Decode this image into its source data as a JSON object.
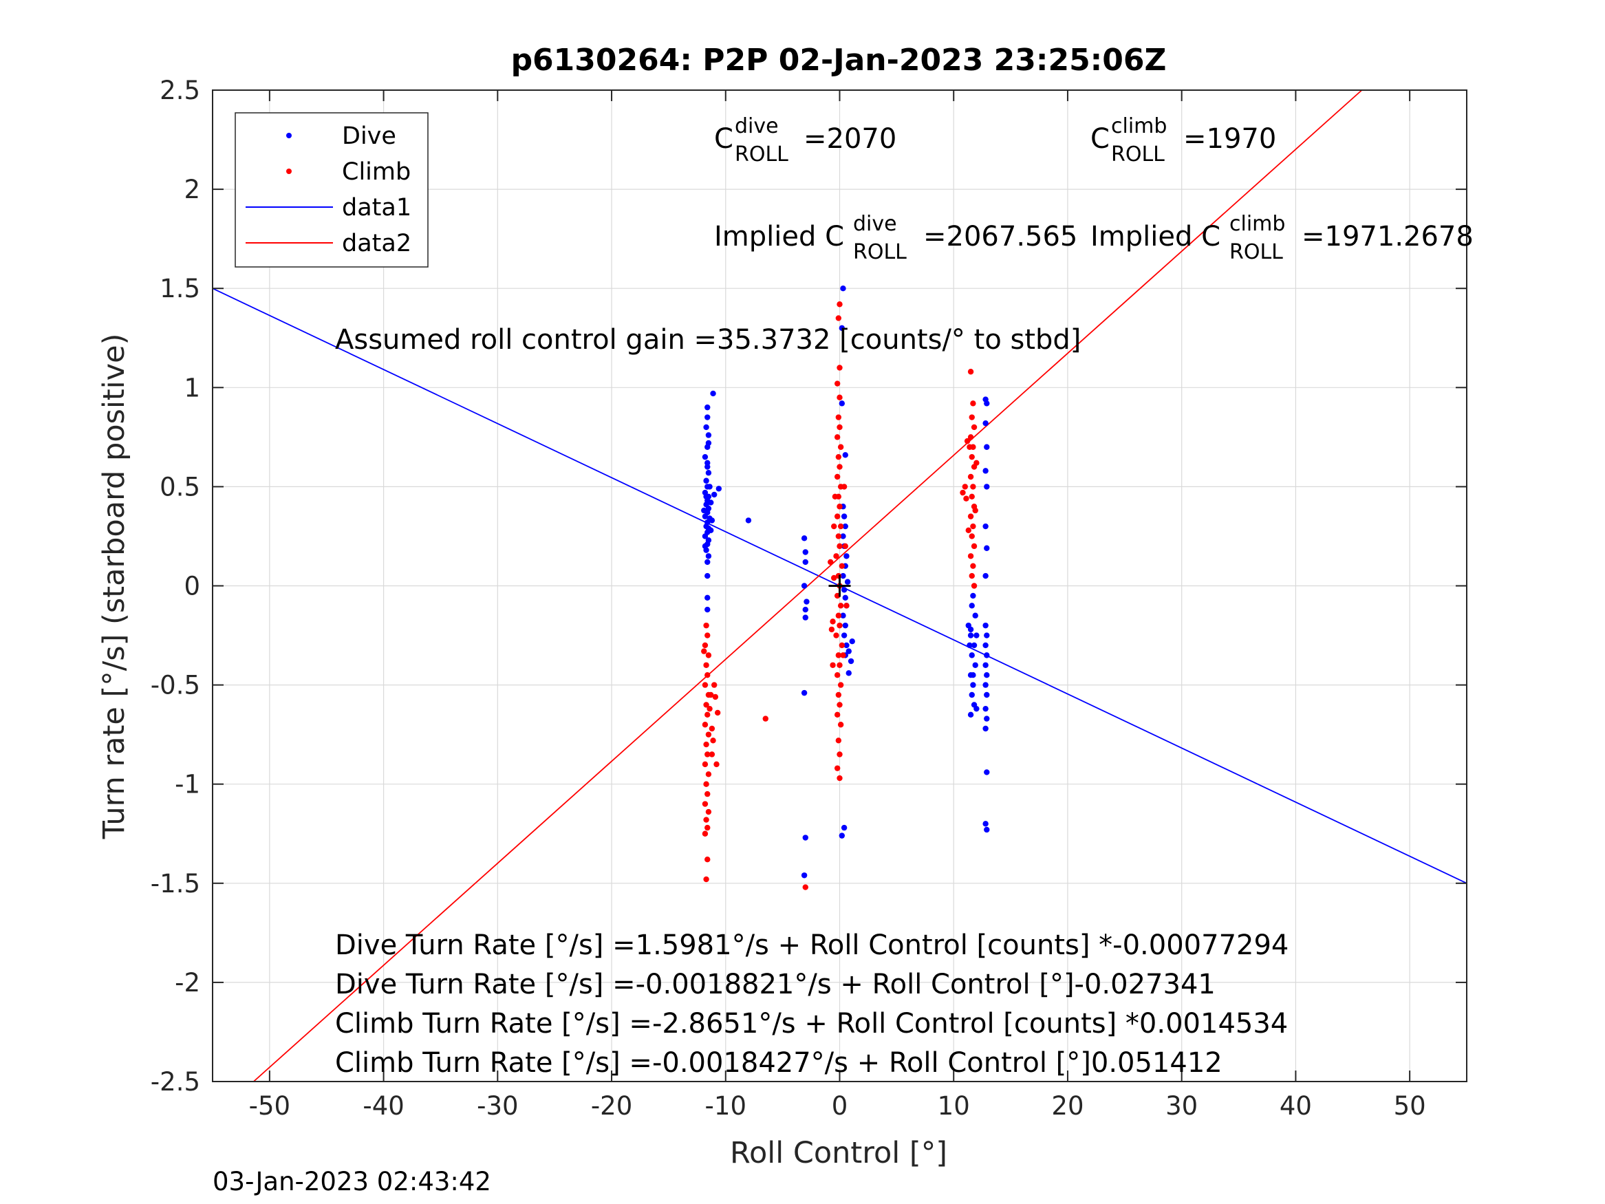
{
  "chart_data": {
    "type": "scatter",
    "title": "p6130264: P2P 02-Jan-2023 23:25:06Z",
    "xlabel": "Roll Control [°]",
    "ylabel": "Turn rate [°/s] (starboard positive)",
    "xlim": [
      -55,
      55
    ],
    "ylim": [
      -2.5,
      2.5
    ],
    "xticks": [
      -50,
      -40,
      -30,
      -20,
      -10,
      0,
      10,
      20,
      30,
      40,
      50
    ],
    "yticks": [
      -2.5,
      -2,
      -1.5,
      -1,
      -0.5,
      0,
      0.5,
      1,
      1.5,
      2,
      2.5
    ],
    "grid": true,
    "legend_position": "top-left",
    "legend": [
      "Dive",
      "Climb",
      "data1",
      "data2"
    ],
    "colors": {
      "dive": "#0000ff",
      "climb": "#ff0000",
      "axes": "#262626",
      "grid": "#d9d9d9"
    },
    "footer_timestamp": "03-Jan-2023 02:43:42",
    "annotations": {
      "c_dive": {
        "base": "C",
        "sup": "dive",
        "sub": "ROLL",
        "value": "=2070"
      },
      "c_climb": {
        "base": "C",
        "sup": "climb",
        "sub": "ROLL",
        "value": "=1970"
      },
      "implied_dive": {
        "prefix": "Implied C",
        "sup": "dive",
        "sub": "ROLL",
        "value": "=2067.565"
      },
      "implied_climb": {
        "prefix": "Implied C",
        "sup": "climb",
        "sub": "ROLL",
        "value": "=1971.2678"
      },
      "gain": "Assumed roll control gain =35.3732 [counts/° to stbd]",
      "fit_lines": [
        "Dive Turn Rate [°/s] =1.5981°/s + Roll Control [counts] *-0.00077294",
        "Dive Turn Rate [°/s] =-0.0018821°/s + Roll Control [°]-0.027341",
        "Climb Turn Rate [°/s] =-2.8651°/s + Roll Control [counts] *0.0014534",
        "Climb Turn Rate [°/s] =-0.0018427°/s + Roll Control [°]0.051412"
      ]
    },
    "series": [
      {
        "name": "Dive",
        "kind": "points",
        "color": "#0000ff",
        "points": [
          [
            -11.6,
            0.9
          ],
          [
            -11.6,
            0.85
          ],
          [
            -11.7,
            0.8
          ],
          [
            -11.5,
            0.76
          ],
          [
            -11.6,
            0.7
          ],
          [
            -11.8,
            0.65
          ],
          [
            -11.6,
            0.62
          ],
          [
            -11.5,
            0.57
          ],
          [
            -11.7,
            0.53
          ],
          [
            -11.6,
            0.5
          ],
          [
            -11.8,
            0.47
          ],
          [
            -11.5,
            0.45
          ],
          [
            -11.6,
            0.43
          ],
          [
            -11.7,
            0.41
          ],
          [
            -11.5,
            0.39
          ],
          [
            -11.6,
            0.37
          ],
          [
            -11.8,
            0.35
          ],
          [
            -11.4,
            0.34
          ],
          [
            -11.6,
            0.32
          ],
          [
            -11.7,
            0.3
          ],
          [
            -11.5,
            0.29
          ],
          [
            -11.6,
            0.27
          ],
          [
            -11.8,
            0.25
          ],
          [
            -11.5,
            0.23
          ],
          [
            -11.6,
            0.21
          ],
          [
            -11.7,
            0.18
          ],
          [
            -11.5,
            0.15
          ],
          [
            -11.6,
            0.12
          ],
          [
            -11.6,
            0.05
          ],
          [
            -11.6,
            -0.06
          ],
          [
            -11.6,
            -0.12
          ],
          [
            -11.7,
            0.45
          ],
          [
            -11.4,
            0.5
          ],
          [
            -11.9,
            0.38
          ],
          [
            -11.3,
            0.28
          ],
          [
            -11.6,
            0.6
          ],
          [
            -11.5,
            0.72
          ],
          [
            -11.3,
            0.42
          ],
          [
            -11.8,
            0.2
          ],
          [
            -11.1,
            0.97
          ],
          [
            -10.6,
            0.49
          ],
          [
            -11.2,
            0.33
          ],
          [
            -11.0,
            0.46
          ],
          [
            -8.0,
            0.33
          ],
          [
            -3.1,
            0.24
          ],
          [
            -3.0,
            0.17
          ],
          [
            -3.0,
            0.12
          ],
          [
            -3.1,
            0.0
          ],
          [
            -2.9,
            -0.08
          ],
          [
            -3.0,
            -0.12
          ],
          [
            -3.0,
            -0.16
          ],
          [
            -3.1,
            -0.54
          ],
          [
            -3.0,
            -1.27
          ],
          [
            -3.1,
            -1.46
          ],
          [
            0.3,
            1.5
          ],
          [
            0.2,
            1.3
          ],
          [
            0.2,
            0.92
          ],
          [
            0.5,
            0.66
          ],
          [
            0.3,
            0.4
          ],
          [
            0.4,
            0.35
          ],
          [
            0.5,
            0.3
          ],
          [
            0.3,
            0.25
          ],
          [
            0.4,
            0.2
          ],
          [
            0.6,
            0.15
          ],
          [
            0.5,
            0.1
          ],
          [
            0.3,
            0.05
          ],
          [
            0.7,
            0.02
          ],
          [
            0.4,
            -0.02
          ],
          [
            0.5,
            -0.06
          ],
          [
            0.6,
            -0.1
          ],
          [
            0.3,
            -0.15
          ],
          [
            0.5,
            -0.2
          ],
          [
            0.4,
            -0.25
          ],
          [
            0.6,
            -0.3
          ],
          [
            0.5,
            -0.35
          ],
          [
            0.8,
            -0.33
          ],
          [
            1.1,
            -0.28
          ],
          [
            1.0,
            -0.38
          ],
          [
            0.8,
            -0.44
          ],
          [
            0.4,
            -1.22
          ],
          [
            0.2,
            -1.26
          ],
          [
            12.8,
            0.94
          ],
          [
            12.9,
            0.92
          ],
          [
            12.8,
            0.82
          ],
          [
            12.9,
            0.7
          ],
          [
            12.8,
            0.58
          ],
          [
            12.9,
            0.5
          ],
          [
            12.8,
            0.3
          ],
          [
            12.9,
            0.19
          ],
          [
            12.8,
            0.05
          ],
          [
            11.3,
            -0.2
          ],
          [
            11.5,
            -0.22
          ],
          [
            11.7,
            -0.05
          ],
          [
            11.6,
            -0.1
          ],
          [
            11.9,
            -0.15
          ],
          [
            11.5,
            -0.25
          ],
          [
            11.8,
            -0.3
          ],
          [
            11.6,
            -0.35
          ],
          [
            11.9,
            -0.4
          ],
          [
            11.5,
            -0.45
          ],
          [
            11.7,
            -0.5
          ],
          [
            11.6,
            -0.55
          ],
          [
            11.8,
            -0.6
          ],
          [
            11.5,
            -0.65
          ],
          [
            12.0,
            -0.25
          ],
          [
            11.4,
            -0.3
          ],
          [
            11.7,
            -0.45
          ],
          [
            12.0,
            -0.62
          ],
          [
            12.8,
            -0.2
          ],
          [
            12.9,
            -0.25
          ],
          [
            12.8,
            -0.3
          ],
          [
            12.9,
            -0.35
          ],
          [
            12.8,
            -0.4
          ],
          [
            12.9,
            -0.45
          ],
          [
            12.8,
            -0.5
          ],
          [
            12.9,
            -0.55
          ],
          [
            12.8,
            -0.62
          ],
          [
            12.9,
            -0.67
          ],
          [
            12.8,
            -0.72
          ],
          [
            12.9,
            -0.94
          ],
          [
            12.8,
            -1.2
          ],
          [
            12.9,
            -1.23
          ]
        ]
      },
      {
        "name": "Climb",
        "kind": "points",
        "color": "#ff0000",
        "points": [
          [
            -11.7,
            -0.2
          ],
          [
            -11.6,
            -0.25
          ],
          [
            -11.8,
            -0.3
          ],
          [
            -11.5,
            -0.35
          ],
          [
            -11.7,
            -0.4
          ],
          [
            -11.6,
            -0.45
          ],
          [
            -11.8,
            -0.5
          ],
          [
            -11.5,
            -0.55
          ],
          [
            -11.7,
            -0.6
          ],
          [
            -11.6,
            -0.65
          ],
          [
            -11.8,
            -0.7
          ],
          [
            -11.5,
            -0.75
          ],
          [
            -11.7,
            -0.8
          ],
          [
            -11.6,
            -0.85
          ],
          [
            -11.8,
            -0.9
          ],
          [
            -11.5,
            -0.95
          ],
          [
            -11.7,
            -1.0
          ],
          [
            -11.6,
            -1.05
          ],
          [
            -11.8,
            -1.1
          ],
          [
            -11.5,
            -1.14
          ],
          [
            -11.7,
            -1.18
          ],
          [
            -11.6,
            -1.22
          ],
          [
            -11.8,
            -1.25
          ],
          [
            -11.6,
            -1.38
          ],
          [
            -11.7,
            -1.48
          ],
          [
            -11.3,
            -0.55
          ],
          [
            -11.2,
            -0.72
          ],
          [
            -11.0,
            -0.5
          ],
          [
            -11.4,
            -0.62
          ],
          [
            -11.2,
            -0.85
          ],
          [
            -11.9,
            -0.33
          ],
          [
            -10.7,
            -0.64
          ],
          [
            -10.8,
            -0.9
          ],
          [
            -10.9,
            -0.56
          ],
          [
            -11.1,
            -0.78
          ],
          [
            -6.5,
            -0.67
          ],
          [
            -3.0,
            -1.52
          ],
          [
            0.0,
            1.42
          ],
          [
            -0.1,
            1.35
          ],
          [
            0.0,
            1.1
          ],
          [
            -0.2,
            1.02
          ],
          [
            0.0,
            0.95
          ],
          [
            -0.1,
            0.85
          ],
          [
            0.0,
            0.8
          ],
          [
            -0.2,
            0.75
          ],
          [
            0.1,
            0.7
          ],
          [
            -0.1,
            0.65
          ],
          [
            0.0,
            0.6
          ],
          [
            -0.2,
            0.55
          ],
          [
            0.1,
            0.5
          ],
          [
            -0.1,
            0.45
          ],
          [
            0.0,
            0.4
          ],
          [
            -0.2,
            0.35
          ],
          [
            0.1,
            0.3
          ],
          [
            -0.1,
            0.25
          ],
          [
            0.0,
            0.2
          ],
          [
            -0.3,
            0.15
          ],
          [
            0.2,
            0.1
          ],
          [
            -0.1,
            0.05
          ],
          [
            0.0,
            0.0
          ],
          [
            -0.2,
            -0.05
          ],
          [
            0.1,
            -0.1
          ],
          [
            -0.1,
            -0.15
          ],
          [
            0.0,
            -0.2
          ],
          [
            -0.3,
            -0.25
          ],
          [
            0.2,
            -0.3
          ],
          [
            -0.1,
            -0.35
          ],
          [
            0.0,
            -0.4
          ],
          [
            -0.2,
            -0.45
          ],
          [
            0.1,
            -0.5
          ],
          [
            -0.1,
            -0.55
          ],
          [
            0.0,
            -0.6
          ],
          [
            -0.2,
            -0.65
          ],
          [
            0.1,
            -0.7
          ],
          [
            -0.1,
            -0.78
          ],
          [
            0.0,
            -0.85
          ],
          [
            -0.2,
            -0.92
          ],
          [
            0.0,
            -0.97
          ],
          [
            -0.8,
            0.12
          ],
          [
            -0.6,
            -0.18
          ],
          [
            -0.7,
            -0.22
          ],
          [
            -0.5,
            0.3
          ],
          [
            0.4,
            0.5
          ],
          [
            0.5,
            0.2
          ],
          [
            0.6,
            -0.1
          ],
          [
            0.3,
            -0.35
          ],
          [
            -0.4,
            0.45
          ],
          [
            -0.6,
            -0.4
          ],
          [
            -0.5,
            0.04
          ],
          [
            11.5,
            1.08
          ],
          [
            11.7,
            0.92
          ],
          [
            11.6,
            0.85
          ],
          [
            11.8,
            0.8
          ],
          [
            11.5,
            0.75
          ],
          [
            11.7,
            0.7
          ],
          [
            11.6,
            0.65
          ],
          [
            11.8,
            0.6
          ],
          [
            11.5,
            0.55
          ],
          [
            11.7,
            0.5
          ],
          [
            11.6,
            0.45
          ],
          [
            11.8,
            0.4
          ],
          [
            11.5,
            0.35
          ],
          [
            11.7,
            0.3
          ],
          [
            11.6,
            0.25
          ],
          [
            11.8,
            0.2
          ],
          [
            11.5,
            0.15
          ],
          [
            11.7,
            0.1
          ],
          [
            11.6,
            0.05
          ],
          [
            11.8,
            0.0
          ],
          [
            11.4,
            0.7
          ],
          [
            11.2,
            0.73
          ],
          [
            11.0,
            0.5
          ],
          [
            10.8,
            0.47
          ],
          [
            11.9,
            0.38
          ],
          [
            11.3,
            0.28
          ],
          [
            12.0,
            0.62
          ],
          [
            11.1,
            0.44
          ]
        ]
      },
      {
        "name": "data1",
        "kind": "line",
        "color": "#0000ff",
        "points": [
          [
            -55,
            1.5
          ],
          [
            55,
            -1.5
          ]
        ]
      },
      {
        "name": "data2",
        "kind": "line",
        "color": "#ff0000",
        "points": [
          [
            -51.4,
            -2.5
          ],
          [
            45.8,
            2.5
          ]
        ]
      }
    ],
    "origin_marker": {
      "x": 0,
      "y": 0,
      "symbol": "+",
      "color": "#000000"
    }
  }
}
